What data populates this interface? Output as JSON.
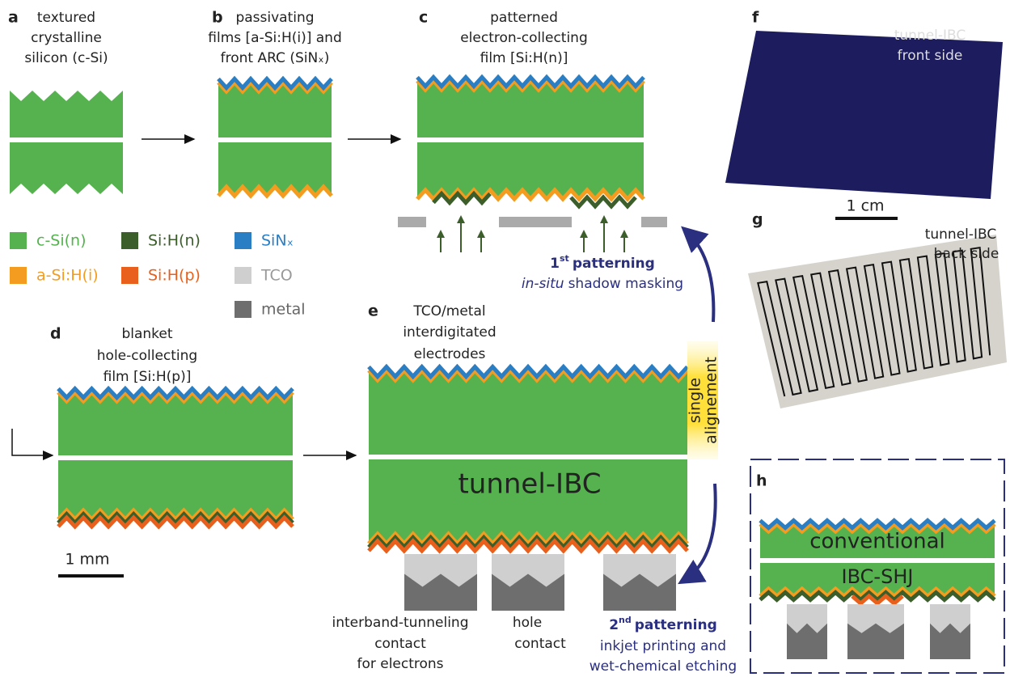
{
  "panels": {
    "a": {
      "letter": "a",
      "caption": [
        "textured",
        "crystalline",
        "silicon (c-Si)"
      ]
    },
    "b": {
      "letter": "b",
      "caption": [
        "passivating",
        "films [a-Si:H(i)] and",
        "front ARC (SiNₓ)"
      ]
    },
    "c": {
      "letter": "c",
      "caption": [
        "patterned",
        "electron-collecting",
        "film [Si:H(n)]"
      ]
    },
    "d": {
      "letter": "d",
      "caption": [
        "blanket",
        "hole-collecting",
        "film [Si:H(p)]"
      ]
    },
    "e": {
      "letter": "e",
      "caption": [
        "TCO/metal",
        "interdigitated",
        "electrodes"
      ],
      "device_label": "tunnel-IBC"
    },
    "f": {
      "letter": "f",
      "caption": [
        "tunnel-IBC",
        "front side"
      ],
      "scale_bar": "1 cm"
    },
    "g": {
      "letter": "g",
      "caption": [
        "tunnel-IBC",
        "back side"
      ]
    },
    "h": {
      "letter": "h",
      "labels": [
        "conventional",
        "IBC-SHJ"
      ]
    }
  },
  "legend": [
    {
      "label": "c-Si(n)"
    },
    {
      "label": "a-Si:H(i)"
    },
    {
      "label": "Si:H(n)"
    },
    {
      "label": "Si:H(p)"
    },
    {
      "label": "SiNₓ"
    },
    {
      "label": "TCO"
    },
    {
      "label": "metal"
    }
  ],
  "scale_bar": "1 mm",
  "alignment_note": [
    "single",
    "alignement"
  ],
  "patterning_1": {
    "ordinal": "1",
    "suffix": "st",
    "title": "patterning",
    "method_italic": "in-situ",
    "method": "shadow masking"
  },
  "patterning_2": {
    "ordinal": "2",
    "suffix": "nd",
    "title": "patterning",
    "lines": [
      "inkjet printing and",
      "wet-chemical etching"
    ]
  },
  "contacts": [
    {
      "lines": [
        "interband-tunneling",
        "contact",
        "for electrons"
      ]
    },
    {
      "lines": [
        "hole",
        "contact"
      ]
    }
  ]
}
